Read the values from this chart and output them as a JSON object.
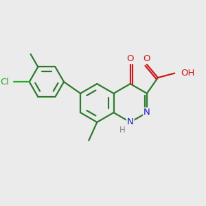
{
  "background_color": "#ebebeb",
  "bond_color": "#2d7a2d",
  "bond_width": 1.6,
  "dbo": 0.045,
  "N_color": "#1a1acc",
  "O_color": "#cc1a1a",
  "Cl_color": "#22aa22",
  "H_color": "#888888",
  "font_size": 9.5,
  "xlim": [
    -2.2,
    2.0
  ],
  "ylim": [
    -1.6,
    1.8
  ]
}
